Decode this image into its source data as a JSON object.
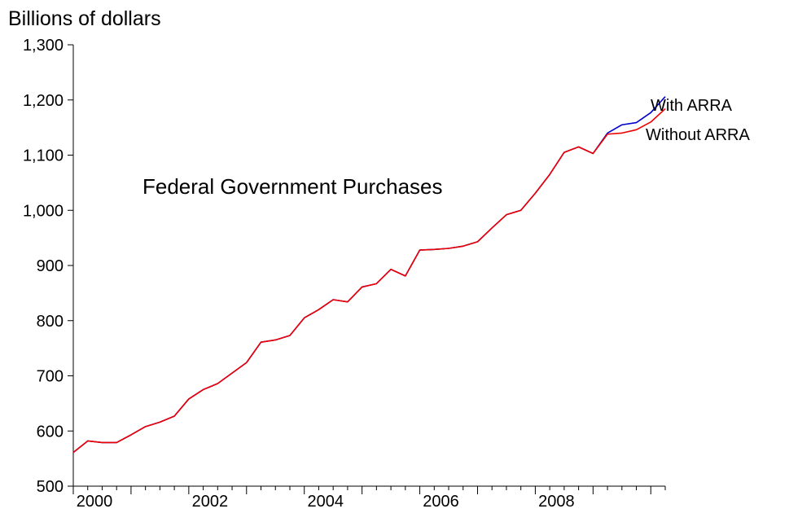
{
  "chart_data": {
    "type": "line",
    "title": "",
    "annotation": "Federal Government Purchases",
    "unit_label": "Billions of dollars",
    "xlabel": "",
    "ylabel": "",
    "xlim": [
      2000.0,
      2010.25
    ],
    "ylim": [
      500,
      1300
    ],
    "y_ticks": [
      500,
      600,
      700,
      800,
      900,
      1000,
      1100,
      1200,
      1300
    ],
    "y_tick_labels": [
      "500",
      "600",
      "700",
      "800",
      "900",
      "1,000",
      "1,100",
      "1,200",
      "1,300"
    ],
    "x_tick_values": [
      2000,
      2002,
      2004,
      2006,
      2008
    ],
    "x_tick_labels": [
      "2000",
      "2002",
      "2004",
      "2006",
      "2008"
    ],
    "grid": false,
    "legend": "none; series labeled directly near line ends",
    "x": [
      2000.0,
      2000.25,
      2000.5,
      2000.75,
      2001.0,
      2001.25,
      2001.5,
      2001.75,
      2002.0,
      2002.25,
      2002.5,
      2002.75,
      2003.0,
      2003.25,
      2003.5,
      2003.75,
      2004.0,
      2004.25,
      2004.5,
      2004.75,
      2005.0,
      2005.25,
      2005.5,
      2005.75,
      2006.0,
      2006.25,
      2006.5,
      2006.75,
      2007.0,
      2007.25,
      2007.5,
      2007.75,
      2008.0,
      2008.25,
      2008.5,
      2008.75,
      2009.0,
      2009.25,
      2009.5,
      2009.75,
      2010.0,
      2010.25
    ],
    "series": [
      {
        "name": "With ARRA",
        "color": "#0000cc",
        "values": [
          561,
          582,
          579,
          579,
          593,
          608,
          616,
          627,
          658,
          675,
          686,
          705,
          724,
          761,
          765,
          773,
          805,
          820,
          838,
          834,
          861,
          867,
          893,
          881,
          928,
          929,
          931,
          935,
          943,
          968,
          992,
          1000,
          1031,
          1065,
          1105,
          1115,
          1103,
          1140,
          1155,
          1159,
          1177,
          1206
        ]
      },
      {
        "name": "Without ARRA",
        "color": "#ee0000",
        "values": [
          561,
          582,
          579,
          579,
          593,
          608,
          616,
          627,
          658,
          675,
          686,
          705,
          724,
          761,
          765,
          773,
          805,
          820,
          838,
          834,
          861,
          867,
          893,
          881,
          928,
          929,
          931,
          935,
          943,
          968,
          992,
          1000,
          1031,
          1065,
          1105,
          1115,
          1103,
          1138,
          1140,
          1146,
          1160,
          1184
        ]
      }
    ]
  }
}
